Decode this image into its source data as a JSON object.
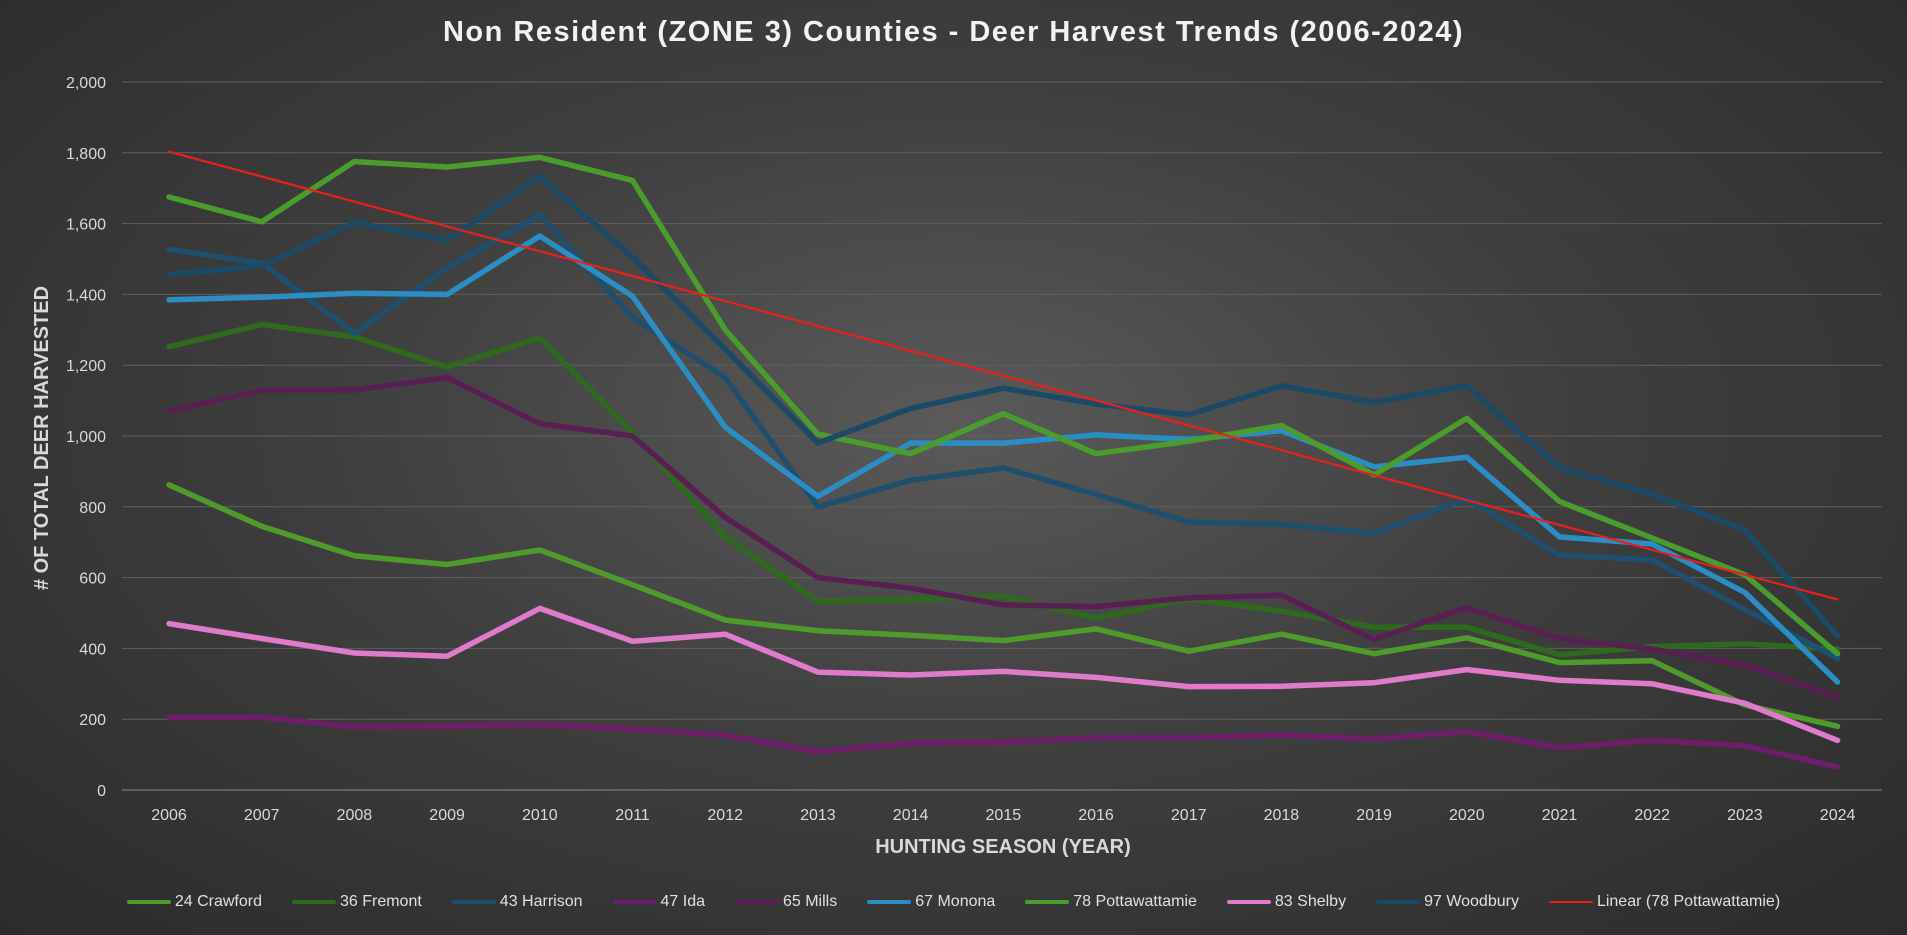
{
  "chart_data": {
    "type": "line",
    "title": "Non Resident (ZONE 3) Counties - Deer Harvest Trends (2006-2024)",
    "xlabel": "HUNTING SEASON (YEAR)",
    "ylabel": "# OF TOTAL DEER HARVESTED",
    "ylim": [
      0,
      2000
    ],
    "yticks": [
      "0",
      "200",
      "400",
      "600",
      "800",
      "1,000",
      "1,200",
      "1,400",
      "1,600",
      "1,800",
      "2,000"
    ],
    "grid": true,
    "legend_position": "bottom",
    "x": [
      "2006",
      "2007",
      "2008",
      "2009",
      "2010",
      "2011",
      "2012",
      "2013",
      "2014",
      "2015",
      "2016",
      "2017",
      "2018",
      "2019",
      "2020",
      "2021",
      "2022",
      "2023",
      "2024"
    ],
    "series": [
      {
        "name": "24 Crawford",
        "color": "#4e9a2b",
        "values": [
          862,
          745,
          662,
          637,
          678,
          580,
          480,
          450,
          437,
          422,
          455,
          392,
          440,
          385,
          430,
          360,
          365,
          240,
          180
        ]
      },
      {
        "name": "36 Fremont",
        "color": "#2d6a1e",
        "values": [
          1252,
          1315,
          1280,
          1195,
          1277,
          1010,
          715,
          533,
          538,
          548,
          485,
          540,
          505,
          460,
          460,
          382,
          405,
          413,
          398
        ]
      },
      {
        "name": "43 Harrison",
        "color": "#1e4f6e",
        "values": [
          1527,
          1488,
          1290,
          1475,
          1625,
          1335,
          1165,
          800,
          875,
          910,
          835,
          757,
          750,
          725,
          823,
          663,
          650,
          510,
          372
        ]
      },
      {
        "name": "47 Ida",
        "color": "#6e1d6a",
        "values": [
          205,
          205,
          178,
          180,
          185,
          172,
          155,
          108,
          132,
          135,
          148,
          148,
          155,
          145,
          165,
          120,
          140,
          125,
          65
        ]
      },
      {
        "name": "65 Mills",
        "color": "#5a1f52",
        "values": [
          1070,
          1130,
          1130,
          1165,
          1035,
          1000,
          770,
          600,
          570,
          523,
          518,
          543,
          550,
          425,
          515,
          428,
          398,
          353,
          262
        ]
      },
      {
        "name": "67 Monona",
        "color": "#2a8ec4",
        "values": [
          1385,
          1392,
          1403,
          1400,
          1565,
          1395,
          1025,
          830,
          980,
          980,
          1003,
          990,
          1015,
          913,
          940,
          715,
          695,
          558,
          305
        ]
      },
      {
        "name": "78 Pottawattamie",
        "color": "#4a9d2d",
        "values": [
          1675,
          1605,
          1775,
          1760,
          1787,
          1722,
          1300,
          1005,
          950,
          1063,
          950,
          985,
          1030,
          890,
          1050,
          815,
          712,
          608,
          385
        ]
      },
      {
        "name": "83 Shelby",
        "color": "#e07acc",
        "values": [
          470,
          428,
          387,
          378,
          513,
          420,
          440,
          333,
          325,
          335,
          318,
          292,
          293,
          303,
          340,
          310,
          300,
          245,
          140
        ]
      },
      {
        "name": "97 Woodbury",
        "color": "#1a4a66",
        "values": [
          1457,
          1480,
          1603,
          1552,
          1733,
          1505,
          1245,
          980,
          1078,
          1135,
          1090,
          1060,
          1142,
          1095,
          1142,
          910,
          835,
          735,
          435
        ]
      },
      {
        "name": "Linear (78 Pottawattamie)",
        "color": "#e8201c",
        "trendline": true,
        "values": [
          1803,
          1733,
          1662,
          1592,
          1522,
          1452,
          1381,
          1311,
          1241,
          1170,
          1100,
          1030,
          960,
          889,
          819,
          749,
          678,
          608,
          538
        ]
      }
    ]
  }
}
